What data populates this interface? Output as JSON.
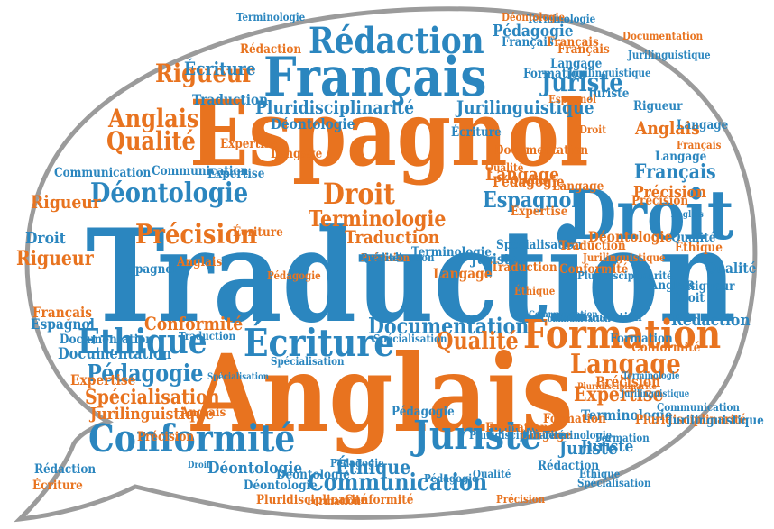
{
  "colors": {
    "orange": "#e8731f",
    "blue": "#2b86bf",
    "bubble_fill": "#ffffff",
    "bubble_stroke": "#9b9b9b"
  },
  "words": [
    {
      "t": "Traduction",
      "c": "b"
    },
    {
      "t": "Anglais",
      "c": "o"
    },
    {
      "t": "Espagnol",
      "c": "o"
    },
    {
      "t": "Français",
      "c": "b"
    },
    {
      "t": "Droit",
      "c": "b"
    },
    {
      "t": "Rédaction",
      "c": "b"
    },
    {
      "t": "Formation",
      "c": "o"
    },
    {
      "t": "Juriste",
      "c": "b"
    },
    {
      "t": "Conformité",
      "c": "b"
    },
    {
      "t": "Écriture",
      "c": "b"
    },
    {
      "t": "Éthique",
      "c": "b"
    },
    {
      "t": "Documentation",
      "c": "b"
    },
    {
      "t": "Déontologie",
      "c": "b"
    },
    {
      "t": "Langage",
      "c": "o"
    },
    {
      "t": "Communication",
      "c": "b"
    },
    {
      "t": "Qualité",
      "c": "o"
    },
    {
      "t": "Rigueur",
      "c": "o"
    },
    {
      "t": "Précision",
      "c": "o"
    },
    {
      "t": "Pédagogie",
      "c": "b"
    },
    {
      "t": "Terminologie",
      "c": "o"
    },
    {
      "t": "Expertise",
      "c": "o"
    },
    {
      "t": "Spécialisation",
      "c": "o"
    },
    {
      "t": "Jurilinguistique",
      "c": "o"
    },
    {
      "t": "Pluridisciplinarité",
      "c": "b"
    },
    {
      "t": "Qualité",
      "c": "o"
    },
    {
      "t": "Conformité",
      "c": "o"
    },
    {
      "t": "Éthique",
      "c": "b"
    },
    {
      "t": "Communication",
      "c": "b"
    },
    {
      "t": "Documentation",
      "c": "b"
    },
    {
      "t": "Traduction",
      "c": "o"
    },
    {
      "t": "Précision",
      "c": "o"
    },
    {
      "t": "Droit",
      "c": "o"
    },
    {
      "t": "Langage",
      "c": "o"
    },
    {
      "t": "Juriste",
      "c": "b"
    },
    {
      "t": "Anglais",
      "c": "o"
    },
    {
      "t": "Qualité",
      "c": "o"
    },
    {
      "t": "Rigueur",
      "c": "o"
    },
    {
      "t": "Espagnol",
      "c": "b"
    },
    {
      "t": "Français",
      "c": "b"
    },
    {
      "t": "Anglais",
      "c": "o"
    },
    {
      "t": "Pédagogie",
      "c": "b"
    },
    {
      "t": "Expertise",
      "c": "o"
    },
    {
      "t": "Langage",
      "c": "o"
    },
    {
      "t": "Éthique",
      "c": "o"
    },
    {
      "t": "Qualité",
      "c": "b"
    },
    {
      "t": "Jurilinguistique",
      "c": "b"
    },
    {
      "t": "Précision",
      "c": "o"
    },
    {
      "t": "Terminologie",
      "c": "b"
    },
    {
      "t": "Anglais",
      "c": "b"
    },
    {
      "t": "Conformité",
      "c": "o"
    },
    {
      "t": "Formation",
      "c": "o"
    },
    {
      "t": "Juriste",
      "c": "b"
    },
    {
      "t": "Terminologie",
      "c": "b"
    },
    {
      "t": "Rédaction",
      "c": "b"
    },
    {
      "t": "Déontologie",
      "c": "b"
    },
    {
      "t": "Écriture",
      "c": "b"
    },
    {
      "t": "Communication",
      "c": "b"
    },
    {
      "t": "Droit",
      "c": "b"
    },
    {
      "t": "Espagnol",
      "c": "b"
    },
    {
      "t": "Rigueur",
      "c": "o"
    },
    {
      "t": "Expertise",
      "c": "o"
    },
    {
      "t": "Français",
      "c": "b"
    },
    {
      "t": "Traduction",
      "c": "b"
    },
    {
      "t": "Spécialisation",
      "c": "b"
    },
    {
      "t": "Formation",
      "c": "b"
    },
    {
      "t": "Jurilinguistique",
      "c": "b"
    },
    {
      "t": "Pédagogie",
      "c": "o"
    },
    {
      "t": "Rédaction",
      "c": "b"
    },
    {
      "t": "Documentation",
      "c": "b"
    },
    {
      "t": "Traduction",
      "c": "b"
    },
    {
      "t": "Rédaction",
      "c": "o"
    },
    {
      "t": "Langage",
      "c": "b"
    },
    {
      "t": "Formation",
      "c": "o"
    },
    {
      "t": "Juriste",
      "c": "b"
    },
    {
      "t": "Droit",
      "c": "b"
    },
    {
      "t": "Expertise",
      "c": "b"
    },
    {
      "t": "Français",
      "c": "o"
    },
    {
      "t": "Écriture",
      "c": "o"
    },
    {
      "t": "Anglais",
      "c": "o"
    },
    {
      "t": "Pédagogie",
      "c": "b"
    },
    {
      "t": "Rigueur",
      "c": "b"
    },
    {
      "t": "Précision",
      "c": "o"
    },
    {
      "t": "Conformité",
      "c": "o"
    },
    {
      "t": "Déontologie",
      "c": "b"
    },
    {
      "t": "Spécialisation",
      "c": "b"
    },
    {
      "t": "Traduction",
      "c": "o"
    },
    {
      "t": "Pluridisciplinarité",
      "c": "o"
    },
    {
      "t": "Terminologie",
      "c": "b"
    },
    {
      "t": "Langage",
      "c": "o"
    },
    {
      "t": "Écriture",
      "c": "o"
    },
    {
      "t": "Qualité",
      "c": "b"
    },
    {
      "t": "Anglais",
      "c": "o"
    },
    {
      "t": "Documentation",
      "c": "o"
    },
    {
      "t": "Communication",
      "c": "b"
    },
    {
      "t": "Jurilinguistique",
      "c": "b"
    },
    {
      "t": "Formation",
      "c": "b"
    },
    {
      "t": "Communication",
      "c": "b"
    },
    {
      "t": "Pluridisciplinarité",
      "c": "o"
    },
    {
      "t": "Précision",
      "c": "o"
    },
    {
      "t": "Spécialisation",
      "c": "b"
    },
    {
      "t": "Déontologie",
      "c": "o"
    },
    {
      "t": "Spécialisation",
      "c": "b"
    },
    {
      "t": "Déontologie",
      "c": "b"
    },
    {
      "t": "Pédagogie",
      "c": "o"
    },
    {
      "t": "Conformité",
      "c": "o"
    },
    {
      "t": "Précision",
      "c": "o"
    },
    {
      "t": "Français",
      "c": "o"
    },
    {
      "t": "Formation",
      "c": "o"
    },
    {
      "t": "Terminologie",
      "c": "b"
    },
    {
      "t": "Juriste",
      "c": "b"
    },
    {
      "t": "Langage",
      "c": "b"
    },
    {
      "t": "Espagnol",
      "c": "o"
    },
    {
      "t": "Pédagogie",
      "c": "b"
    },
    {
      "t": "Français",
      "c": "o"
    },
    {
      "t": "Jurilinguistique",
      "c": "b"
    },
    {
      "t": "Communication",
      "c": "b"
    },
    {
      "t": "Éthique",
      "c": "o"
    },
    {
      "t": "Terminologie",
      "c": "b"
    },
    {
      "t": "Langage",
      "c": "b"
    },
    {
      "t": "Traduction",
      "c": "o"
    },
    {
      "t": "Français",
      "c": "o"
    },
    {
      "t": "Espagnol",
      "c": "b"
    },
    {
      "t": "Anglais",
      "c": "b"
    },
    {
      "t": "Communication",
      "c": "b"
    },
    {
      "t": "Formation",
      "c": "b"
    },
    {
      "t": "Terminologie",
      "c": "b"
    },
    {
      "t": "Pluridisciplinarité",
      "c": "b"
    },
    {
      "t": "Expertise",
      "c": "o"
    },
    {
      "t": "Rigueur",
      "c": "b"
    },
    {
      "t": "Jurilinguistique",
      "c": "o"
    },
    {
      "t": "Langage",
      "c": "o"
    },
    {
      "t": "Rédaction",
      "c": "b"
    },
    {
      "t": "Écriture",
      "c": "b"
    },
    {
      "t": "Pédagogie",
      "c": "b"
    },
    {
      "t": "Documentation",
      "c": "o"
    },
    {
      "t": "Éthique",
      "c": "b"
    },
    {
      "t": "Pluridisciplinarité",
      "c": "o"
    },
    {
      "t": "Déontologie",
      "c": "o"
    },
    {
      "t": "Juriste",
      "c": "b"
    },
    {
      "t": "Qualité",
      "c": "b"
    },
    {
      "t": "Droit",
      "c": "b"
    },
    {
      "t": "Droit",
      "c": "o"
    },
    {
      "t": "Qualité",
      "c": "o"
    },
    {
      "t": "Jurilinguistique",
      "c": "b"
    },
    {
      "t": "Spécialisation",
      "c": "b"
    },
    {
      "t": "Déontologie",
      "c": "b"
    },
    {
      "t": "Pluridisciplinarité",
      "c": "b"
    },
    {
      "t": "Langage",
      "c": "o"
    },
    {
      "t": "Spécialisation",
      "c": "b"
    },
    {
      "t": "Précision",
      "c": "o"
    },
    {
      "t": "Qualité",
      "c": "b"
    }
  ]
}
